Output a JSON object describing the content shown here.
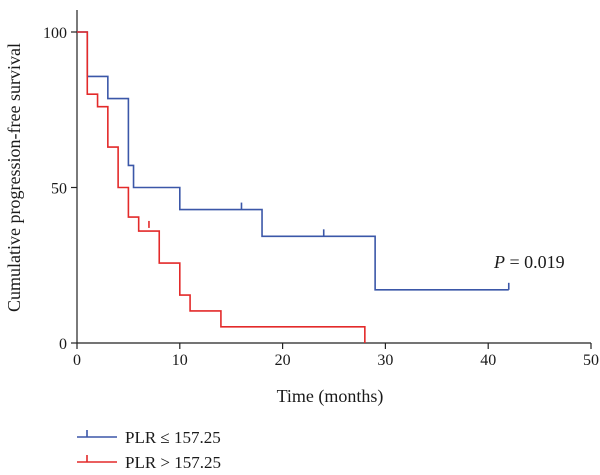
{
  "chart_data": {
    "type": "line",
    "subtype": "kaplan-meier step plot",
    "title": "",
    "xlabel": "Time (months)",
    "ylabel": "Cumulative progression-free survival",
    "xlim": [
      0,
      50
    ],
    "ylim": [
      0,
      100
    ],
    "x_ticks": [
      "0",
      "10",
      "20",
      "30",
      "40",
      "50"
    ],
    "y_ticks": [
      "0",
      "50",
      "100"
    ],
    "grid": false,
    "legend_position": "bottom-left",
    "annotation": {
      "p_label": "P",
      "p_value": " = 0.019"
    },
    "series": [
      {
        "name": "PLR ≤ 157.25",
        "color": "#3b57a8",
        "steps": [
          [
            0,
            100
          ],
          [
            1,
            85.7
          ],
          [
            3,
            78.6
          ],
          [
            5,
            57.1
          ],
          [
            5.5,
            50
          ],
          [
            10,
            42.9
          ],
          [
            18,
            34.3
          ],
          [
            29,
            17.1
          ],
          [
            42,
            17.1
          ]
        ],
        "censored": [
          [
            16,
            42.9
          ],
          [
            24,
            34.3
          ],
          [
            42,
            17.1
          ]
        ]
      },
      {
        "name": "PLR > 157.25",
        "color": "#e32a2a",
        "steps": [
          [
            0,
            100
          ],
          [
            1,
            80
          ],
          [
            2,
            76
          ],
          [
            3,
            63
          ],
          [
            4,
            50
          ],
          [
            5,
            40.5
          ],
          [
            6,
            36
          ],
          [
            8,
            25.7
          ],
          [
            10,
            15.4
          ],
          [
            11,
            10.3
          ],
          [
            14,
            5.2
          ],
          [
            28,
            5.2
          ],
          [
            28,
            0
          ]
        ],
        "censored": [
          [
            7,
            37
          ]
        ]
      }
    ]
  }
}
